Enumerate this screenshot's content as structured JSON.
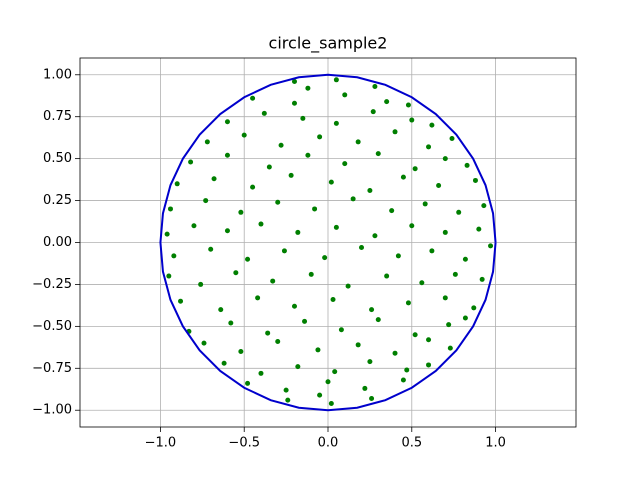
{
  "chart_data": {
    "type": "scatter",
    "title": "circle_sample2",
    "xlim": [
      -1.48,
      1.48
    ],
    "ylim": [
      -1.1,
      1.1
    ],
    "xticks": [
      {
        "value": -1,
        "label": "−1.0"
      },
      {
        "value": -0.5,
        "label": "−0.5"
      },
      {
        "value": 0,
        "label": "0.0"
      },
      {
        "value": 0.5,
        "label": "0.5"
      },
      {
        "value": 1,
        "label": "1.0"
      }
    ],
    "yticks": [
      {
        "value": -1,
        "label": "−1.00"
      },
      {
        "value": -0.75,
        "label": "−0.75"
      },
      {
        "value": -0.5,
        "label": "−0.50"
      },
      {
        "value": -0.25,
        "label": "−0.25"
      },
      {
        "value": 0,
        "label": "0.00"
      },
      {
        "value": 0.25,
        "label": "0.25"
      },
      {
        "value": 0.5,
        "label": "0.50"
      },
      {
        "value": 0.75,
        "label": "0.75"
      },
      {
        "value": 1,
        "label": "1.00"
      }
    ],
    "grid": true,
    "series": [
      {
        "type": "scatter",
        "color": "#007f00",
        "x": [
          -0.2,
          0.05,
          0.28,
          -0.12,
          -0.45,
          -0.2,
          0.1,
          0.35,
          0.48,
          -0.6,
          -0.38,
          -0.15,
          0.05,
          0.27,
          0.5,
          0.62,
          -0.72,
          -0.5,
          -0.28,
          -0.05,
          0.18,
          0.4,
          0.6,
          0.74,
          -0.82,
          -0.6,
          -0.35,
          -0.12,
          0.1,
          0.3,
          0.52,
          0.7,
          0.83,
          -0.9,
          -0.68,
          -0.45,
          -0.22,
          0.02,
          0.25,
          0.45,
          0.66,
          0.88,
          -0.94,
          -0.73,
          -0.52,
          -0.3,
          -0.08,
          0.15,
          0.38,
          0.58,
          0.78,
          0.93,
          -0.96,
          -0.8,
          -0.6,
          -0.4,
          -0.18,
          0.05,
          0.28,
          0.5,
          0.7,
          0.9,
          -0.92,
          -0.7,
          -0.48,
          -0.26,
          -0.02,
          0.2,
          0.42,
          0.62,
          0.82,
          0.97,
          -0.95,
          -0.76,
          -0.55,
          -0.33,
          -0.1,
          0.12,
          0.35,
          0.56,
          0.76,
          0.92,
          -0.88,
          -0.64,
          -0.42,
          -0.2,
          0.03,
          0.26,
          0.48,
          0.7,
          0.87,
          -0.83,
          -0.58,
          -0.36,
          -0.14,
          0.08,
          0.3,
          0.52,
          0.72,
          0.82,
          -0.74,
          -0.52,
          -0.3,
          -0.06,
          0.18,
          0.4,
          0.6,
          0.73,
          -0.62,
          -0.4,
          -0.18,
          0.04,
          0.25,
          0.47,
          0.6,
          -0.48,
          -0.25,
          0,
          0.22,
          0.45,
          -0.24,
          0.02,
          0.26,
          -0.05
        ],
        "values": [
          0.96,
          0.97,
          0.93,
          0.92,
          0.86,
          0.83,
          0.88,
          0.84,
          0.82,
          0.72,
          0.77,
          0.74,
          0.71,
          0.78,
          0.73,
          0.7,
          0.6,
          0.64,
          0.58,
          0.63,
          0.6,
          0.66,
          0.57,
          0.62,
          0.48,
          0.52,
          0.45,
          0.52,
          0.47,
          0.53,
          0.44,
          0.5,
          0.46,
          0.35,
          0.38,
          0.33,
          0.4,
          0.36,
          0.31,
          0.39,
          0.34,
          0.37,
          0.2,
          0.25,
          0.18,
          0.24,
          0.2,
          0.26,
          0.19,
          0.23,
          0.18,
          0.22,
          0.05,
          0.1,
          0.07,
          0.11,
          0.06,
          0.09,
          0.04,
          0.1,
          0.06,
          0.08,
          -0.08,
          -0.04,
          -0.1,
          -0.05,
          -0.09,
          -0.03,
          -0.08,
          -0.05,
          -0.1,
          -0.02,
          -0.2,
          -0.25,
          -0.18,
          -0.23,
          -0.19,
          -0.26,
          -0.2,
          -0.24,
          -0.19,
          -0.22,
          -0.35,
          -0.4,
          -0.33,
          -0.38,
          -0.34,
          -0.4,
          -0.36,
          -0.33,
          -0.39,
          -0.53,
          -0.48,
          -0.54,
          -0.47,
          -0.52,
          -0.46,
          -0.55,
          -0.49,
          -0.45,
          -0.6,
          -0.65,
          -0.59,
          -0.64,
          -0.61,
          -0.66,
          -0.58,
          -0.63,
          -0.72,
          -0.78,
          -0.74,
          -0.77,
          -0.71,
          -0.76,
          -0.73,
          -0.84,
          -0.88,
          -0.83,
          -0.87,
          -0.82,
          -0.94,
          -0.96,
          -0.93,
          -0.91
        ]
      },
      {
        "type": "line",
        "color": "#0000cc",
        "x": [
          1,
          0.985,
          0.94,
          0.866,
          0.766,
          0.643,
          0.5,
          0.342,
          0.174,
          0,
          -0.174,
          -0.342,
          -0.5,
          -0.643,
          -0.766,
          -0.866,
          -0.94,
          -0.985,
          -1,
          -0.985,
          -0.94,
          -0.866,
          -0.766,
          -0.643,
          -0.5,
          -0.342,
          -0.174,
          0,
          0.174,
          0.342,
          0.5,
          0.643,
          0.766,
          0.866,
          0.94,
          0.985,
          1
        ],
        "values": [
          0,
          0.174,
          0.342,
          0.5,
          0.643,
          0.766,
          0.866,
          0.94,
          0.985,
          1,
          0.985,
          0.94,
          0.866,
          0.766,
          0.643,
          0.5,
          0.342,
          0.174,
          0,
          -0.174,
          -0.342,
          -0.5,
          -0.643,
          -0.766,
          -0.866,
          -0.94,
          -0.985,
          -1,
          -0.985,
          -0.94,
          -0.866,
          -0.766,
          -0.643,
          -0.5,
          -0.342,
          -0.174,
          0
        ]
      }
    ]
  }
}
